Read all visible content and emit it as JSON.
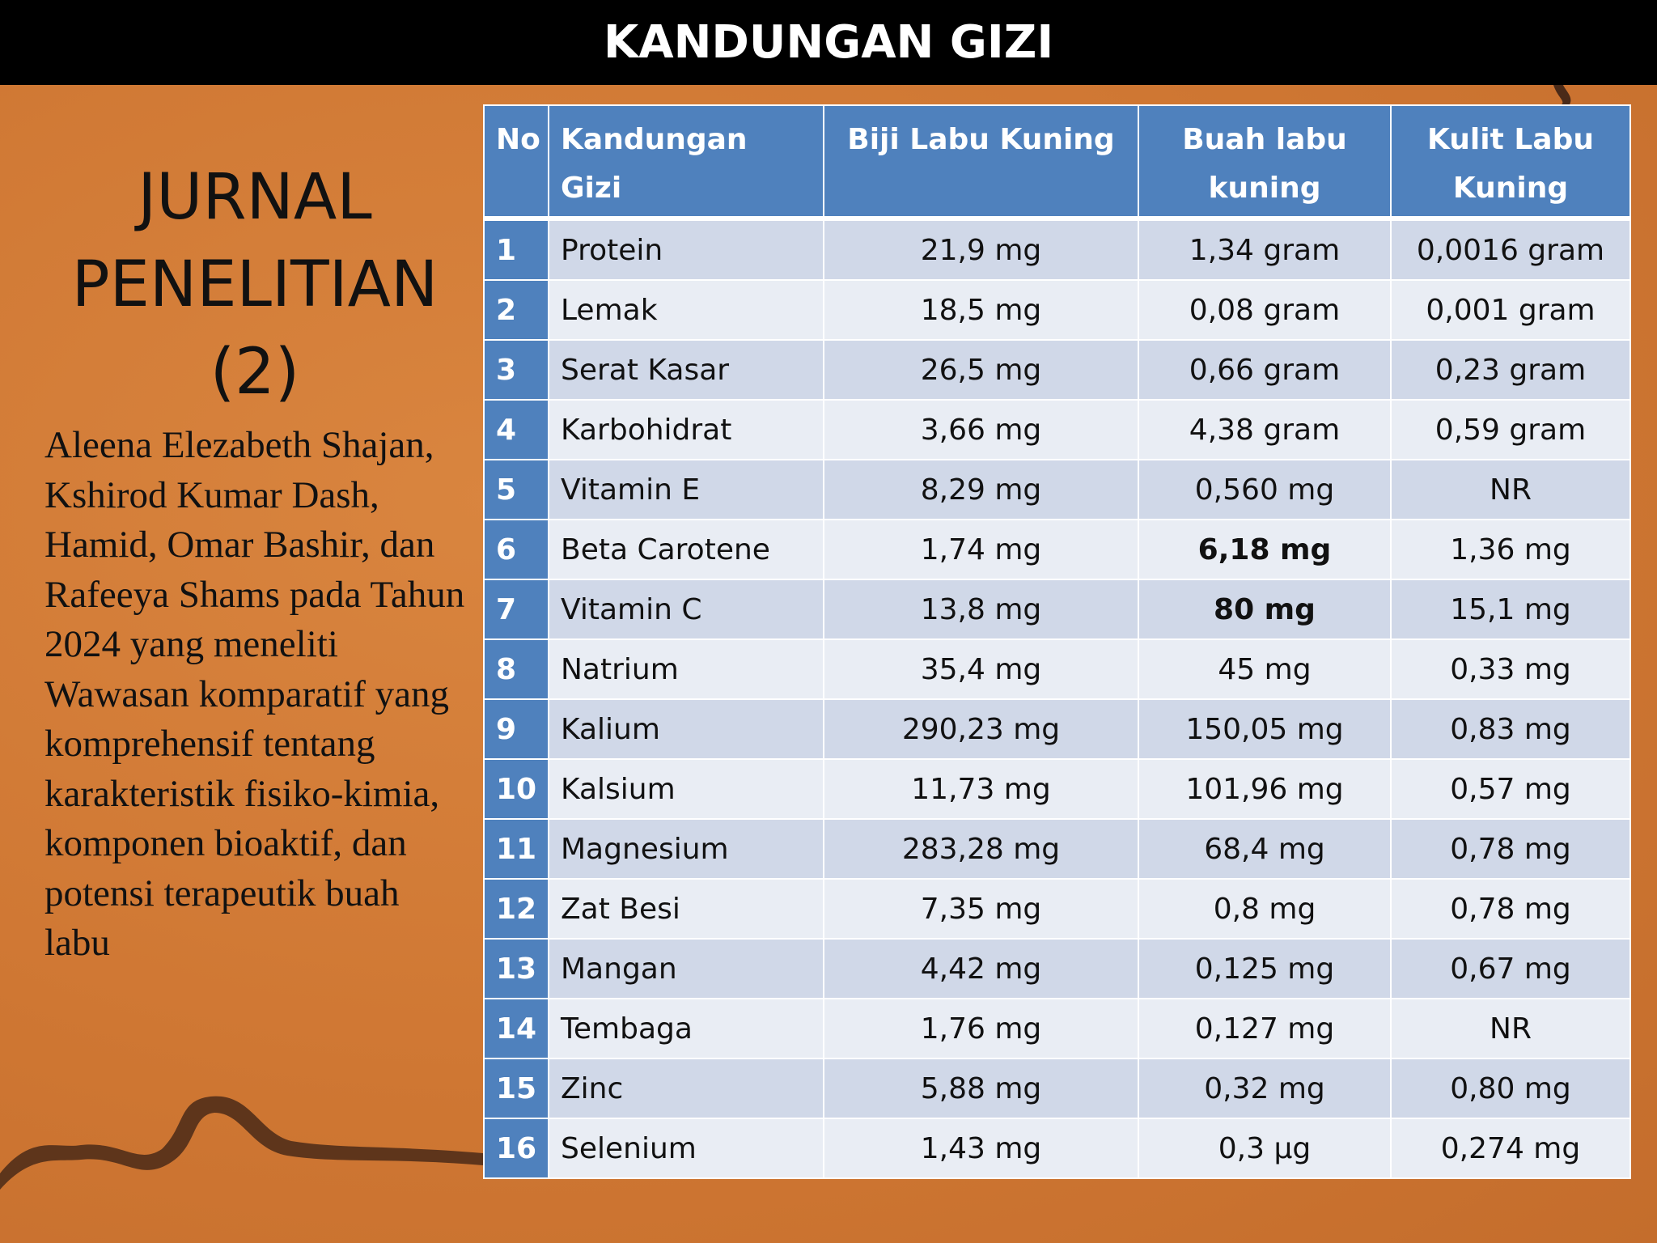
{
  "header": {
    "title": "KANDUNGAN GIZI"
  },
  "sidebar": {
    "title": "JURNAL PENELITIAN (2)",
    "text": "Aleena Elezabeth Shajan, Kshirod Kumar Dash, Hamid, Omar Bashir, dan Rafeeya Shams pada Tahun 2024 yang meneliti Wawasan komparatif yang komprehensif tentang karakteristik fisiko-kimia, komponen bioaktif, dan potensi terapeutik buah labu"
  },
  "table": {
    "columns": [
      "No",
      "Kandungan Gizi",
      "Biji Labu Kuning",
      "Buah labu kuning",
      "Kulit Labu Kuning"
    ],
    "rows": [
      [
        "1",
        "Protein",
        "21,9 mg",
        "1,34 gram",
        "0,0016 gram"
      ],
      [
        "2",
        "Lemak",
        "18,5 mg",
        "0,08 gram",
        "0,001 gram"
      ],
      [
        "3",
        "Serat Kasar",
        "26,5 mg",
        "0,66 gram",
        "0,23 gram"
      ],
      [
        "4",
        "Karbohidrat",
        "3,66 mg",
        "4,38 gram",
        "0,59 gram"
      ],
      [
        "5",
        "Vitamin E",
        "8,29 mg",
        "0,560 mg",
        "NR"
      ],
      [
        "6",
        "Beta Carotene",
        "1,74 mg",
        "6,18 mg",
        "1,36 mg"
      ],
      [
        "7",
        "Vitamin C",
        "13,8 mg",
        "80 mg",
        "15,1 mg"
      ],
      [
        "8",
        "Natrium",
        "35,4 mg",
        "45 mg",
        "0,33 mg"
      ],
      [
        "9",
        "Kalium",
        "290,23 mg",
        "150,05 mg",
        "0,83 mg"
      ],
      [
        "10",
        "Kalsium",
        "11,73 mg",
        "101,96 mg",
        "0,57 mg"
      ],
      [
        "11",
        "Magnesium",
        "283,28 mg",
        "68,4 mg",
        "0,78 mg"
      ],
      [
        "12",
        "Zat Besi",
        "7,35 mg",
        "0,8 mg",
        "0,78 mg"
      ],
      [
        "13",
        "Mangan",
        "4,42 mg",
        "0,125 mg",
        "0,67 mg"
      ],
      [
        "14",
        "Tembaga",
        "1,76 mg",
        "0,127 mg",
        "NR"
      ],
      [
        "15",
        "Zinc",
        "5,88 mg",
        "0,32 mg",
        "0,80 mg"
      ],
      [
        "16",
        "Selenium",
        "1,43 mg",
        "0,3 µg",
        "0,274 mg"
      ]
    ],
    "bold_cells": [
      [
        5,
        3
      ],
      [
        6,
        3
      ]
    ]
  }
}
